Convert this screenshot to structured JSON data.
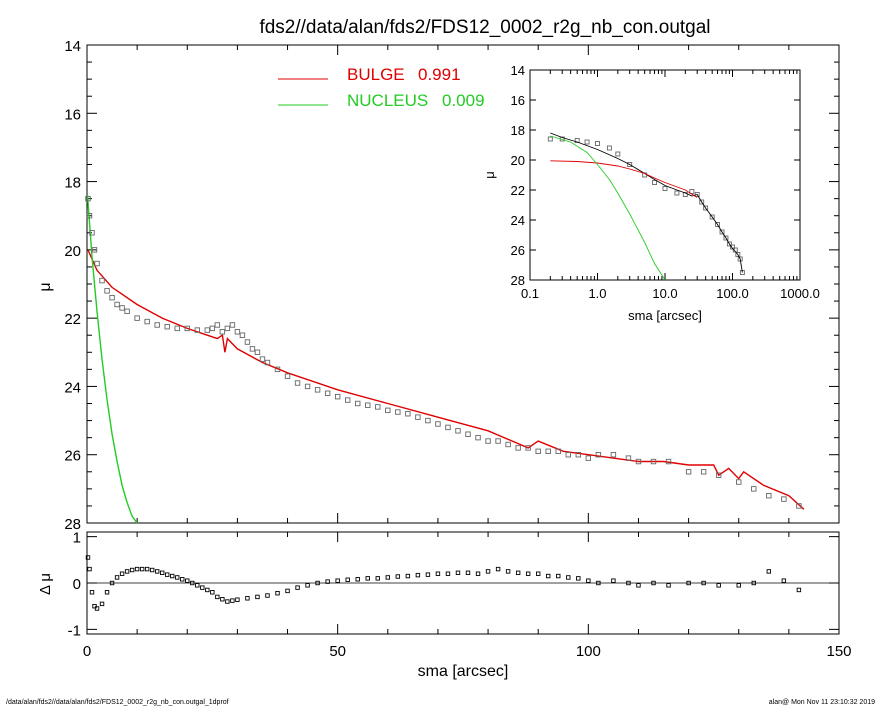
{
  "title": "fds2//data/alan/fds2/FDS12_0002_r2g_nb_con.outgal",
  "footer": {
    "left": "/data/alan/fds2//data/alan/fds2/FDS12_0002_r2g_nb_con.outgal_1dprof",
    "right": "alan@  Mon Nov 11 23:10:32 2019"
  },
  "colors": {
    "bulge": "#e00000",
    "nucleus": "#22cc22",
    "data": "#666666",
    "axes": "#000000"
  },
  "chart_data": [
    {
      "id": "main",
      "type": "line",
      "title": "fds2//data/alan/fds2/FDS12_0002_r2g_nb_con.outgal",
      "xlabel": "sma [arcsec]",
      "ylabel": "μ",
      "xlim": [
        0,
        150
      ],
      "ylim": [
        28,
        14
      ],
      "y_inverted": true,
      "yticks": [
        "14",
        "16",
        "18",
        "20",
        "22",
        "24",
        "26",
        "28"
      ],
      "legend": {
        "position": "top-center",
        "entries": [
          {
            "label": "BULGE",
            "value": "0.991",
            "color": "#e00000"
          },
          {
            "label": "NUCLEUS",
            "value": "0.009",
            "color": "#22cc22"
          }
        ]
      },
      "series": [
        {
          "name": "BULGE",
          "color": "#e00000",
          "x": [
            0.2,
            2,
            5,
            10,
            15,
            20,
            24,
            26,
            27,
            27.5,
            28,
            30,
            35,
            40,
            50,
            60,
            70,
            80,
            88,
            90,
            95,
            100,
            110,
            115,
            120,
            125,
            126,
            128,
            130,
            131,
            135,
            140,
            143
          ],
          "y": [
            20.0,
            20.6,
            21.1,
            21.6,
            22.0,
            22.3,
            22.5,
            22.6,
            22.5,
            23.0,
            22.6,
            22.9,
            23.3,
            23.6,
            24.1,
            24.5,
            24.9,
            25.3,
            25.8,
            25.6,
            25.9,
            26.0,
            26.2,
            26.2,
            26.3,
            26.3,
            26.6,
            26.4,
            26.7,
            26.5,
            26.9,
            27.2,
            27.6
          ]
        },
        {
          "name": "NUCLEUS",
          "color": "#22cc22",
          "x": [
            0.1,
            0.5,
            1,
            2,
            3,
            4,
            5,
            6,
            7,
            8,
            9,
            10
          ],
          "y": [
            18.4,
            19.2,
            20.2,
            21.8,
            23.2,
            24.4,
            25.4,
            26.2,
            26.9,
            27.4,
            27.8,
            28.0
          ]
        },
        {
          "name": "",
          "type": "scatter",
          "color": "#666666",
          "x": [
            0.2,
            0.5,
            1,
            1.5,
            2,
            3,
            4,
            5,
            6,
            7,
            8,
            10,
            12,
            14,
            16,
            18,
            20,
            22,
            24,
            25,
            26,
            27,
            28,
            29,
            30,
            31,
            32,
            33,
            34,
            35,
            36,
            38,
            40,
            42,
            44,
            46,
            48,
            50,
            52,
            54,
            56,
            58,
            60,
            62,
            64,
            66,
            68,
            70,
            72,
            74,
            76,
            78,
            80,
            82,
            84,
            86,
            88,
            90,
            92,
            94,
            96,
            98,
            100,
            102,
            105,
            108,
            110,
            113,
            116,
            120,
            123,
            126,
            130,
            133,
            136,
            139,
            142
          ],
          "y": [
            18.5,
            19.0,
            19.5,
            20.0,
            20.4,
            20.9,
            21.2,
            21.4,
            21.6,
            21.7,
            21.8,
            22.0,
            22.1,
            22.2,
            22.25,
            22.3,
            22.3,
            22.35,
            22.35,
            22.3,
            22.2,
            22.4,
            22.3,
            22.2,
            22.4,
            22.5,
            22.7,
            22.9,
            23.0,
            23.2,
            23.3,
            23.5,
            23.7,
            23.9,
            24.0,
            24.1,
            24.2,
            24.3,
            24.4,
            24.5,
            24.55,
            24.6,
            24.7,
            24.75,
            24.8,
            24.9,
            25.0,
            25.1,
            25.2,
            25.3,
            25.4,
            25.5,
            25.6,
            25.6,
            25.7,
            25.8,
            25.8,
            25.9,
            25.9,
            25.9,
            26.0,
            26.0,
            26.1,
            26.0,
            26.0,
            26.1,
            26.2,
            26.2,
            26.2,
            26.5,
            26.5,
            26.6,
            26.8,
            27.0,
            27.2,
            27.3,
            27.5
          ]
        }
      ]
    },
    {
      "id": "residual",
      "type": "line",
      "xlabel": "sma [arcsec]",
      "ylabel": "Δ μ",
      "xlim": [
        0,
        150
      ],
      "ylim": [
        -1.1,
        1.1
      ],
      "xticks": [
        "0",
        "50",
        "100",
        "150"
      ],
      "yticks": [
        "1",
        "0",
        "-1"
      ],
      "series": [
        {
          "name": "",
          "type": "scatter",
          "color": "#000000",
          "x": [
            0.2,
            0.5,
            1,
            1.5,
            2,
            3,
            4,
            5,
            6,
            7,
            8,
            9,
            10,
            11,
            12,
            13,
            14,
            15,
            16,
            17,
            18,
            19,
            20,
            21,
            22,
            23,
            24,
            25,
            26,
            27,
            28,
            29,
            30,
            32,
            34,
            36,
            38,
            40,
            42,
            44,
            46,
            48,
            50,
            52,
            54,
            56,
            58,
            60,
            62,
            64,
            66,
            68,
            70,
            72,
            74,
            76,
            78,
            80,
            82,
            84,
            86,
            88,
            90,
            92,
            94,
            96,
            98,
            100,
            102,
            105,
            108,
            110,
            113,
            116,
            120,
            123,
            126,
            130,
            133,
            136,
            139,
            142
          ],
          "y": [
            0.55,
            0.3,
            -0.2,
            -0.5,
            -0.55,
            -0.45,
            -0.2,
            0.0,
            0.12,
            0.2,
            0.25,
            0.28,
            0.3,
            0.3,
            0.3,
            0.28,
            0.25,
            0.22,
            0.18,
            0.15,
            0.12,
            0.08,
            0.05,
            0.0,
            -0.05,
            -0.1,
            -0.15,
            -0.2,
            -0.3,
            -0.35,
            -0.4,
            -0.38,
            -0.36,
            -0.33,
            -0.3,
            -0.27,
            -0.22,
            -0.17,
            -0.1,
            -0.05,
            0.0,
            0.03,
            0.05,
            0.07,
            0.08,
            0.1,
            0.1,
            0.12,
            0.14,
            0.15,
            0.17,
            0.18,
            0.2,
            0.2,
            0.22,
            0.22,
            0.2,
            0.25,
            0.3,
            0.25,
            0.22,
            0.2,
            0.2,
            0.15,
            0.15,
            0.12,
            0.1,
            0.05,
            0.0,
            0.05,
            0.0,
            -0.05,
            0.0,
            -0.05,
            0.0,
            0.0,
            -0.05,
            -0.05,
            0.0,
            0.25,
            0.05,
            -0.15
          ]
        }
      ]
    },
    {
      "id": "inset",
      "type": "line",
      "xlabel": "sma [arcsec]",
      "ylabel": "μ",
      "xscale": "log",
      "xlim": [
        0.1,
        1000
      ],
      "ylim": [
        28,
        14
      ],
      "xticks": [
        "0.1",
        "1.0",
        "10.0",
        "100.0",
        "1000.0"
      ],
      "yticks": [
        "14",
        "16",
        "18",
        "20",
        "22",
        "24",
        "26",
        "28"
      ],
      "series": [
        {
          "name": "",
          "type": "scatter",
          "color": "#666666",
          "x": [
            0.2,
            0.3,
            0.5,
            0.7,
            1,
            1.5,
            2,
            3,
            5,
            7,
            10,
            15,
            20,
            25,
            30,
            35,
            40,
            50,
            60,
            70,
            80,
            90,
            100,
            110,
            120,
            130,
            140
          ],
          "y": [
            18.6,
            18.6,
            18.7,
            18.8,
            18.9,
            19.2,
            19.6,
            20.3,
            21.0,
            21.5,
            21.9,
            22.2,
            22.3,
            22.1,
            22.3,
            22.8,
            23.2,
            23.8,
            24.3,
            24.8,
            25.2,
            25.6,
            25.8,
            26.0,
            26.3,
            26.6,
            27.5
          ]
        },
        {
          "name": "",
          "color": "#000000",
          "x": [
            0.2,
            0.3,
            0.5,
            1,
            2,
            3,
            5,
            7,
            10,
            15,
            20,
            25,
            30,
            35,
            40,
            50,
            60,
            70,
            80,
            90,
            100,
            110,
            120,
            130,
            140
          ],
          "y": [
            18.2,
            18.5,
            18.8,
            19.3,
            19.9,
            20.3,
            20.9,
            21.3,
            21.7,
            22.0,
            22.2,
            22.4,
            22.3,
            22.8,
            23.2,
            23.8,
            24.3,
            24.8,
            25.2,
            25.6,
            25.9,
            26.1,
            26.3,
            26.6,
            27.5
          ]
        },
        {
          "name": "",
          "color": "#e00000",
          "x": [
            0.2,
            0.5,
            1,
            2,
            3,
            5,
            7,
            10,
            20,
            30
          ],
          "y": [
            20.05,
            20.1,
            20.2,
            20.4,
            20.6,
            20.9,
            21.2,
            21.5,
            22.0,
            22.5
          ]
        },
        {
          "name": "",
          "color": "#22cc22",
          "x": [
            0.2,
            0.4,
            0.7,
            1,
            1.5,
            2,
            3,
            5,
            7,
            10
          ],
          "y": [
            18.4,
            18.8,
            19.5,
            20.3,
            21.3,
            22.2,
            23.6,
            25.5,
            26.9,
            28.0
          ]
        }
      ]
    }
  ]
}
